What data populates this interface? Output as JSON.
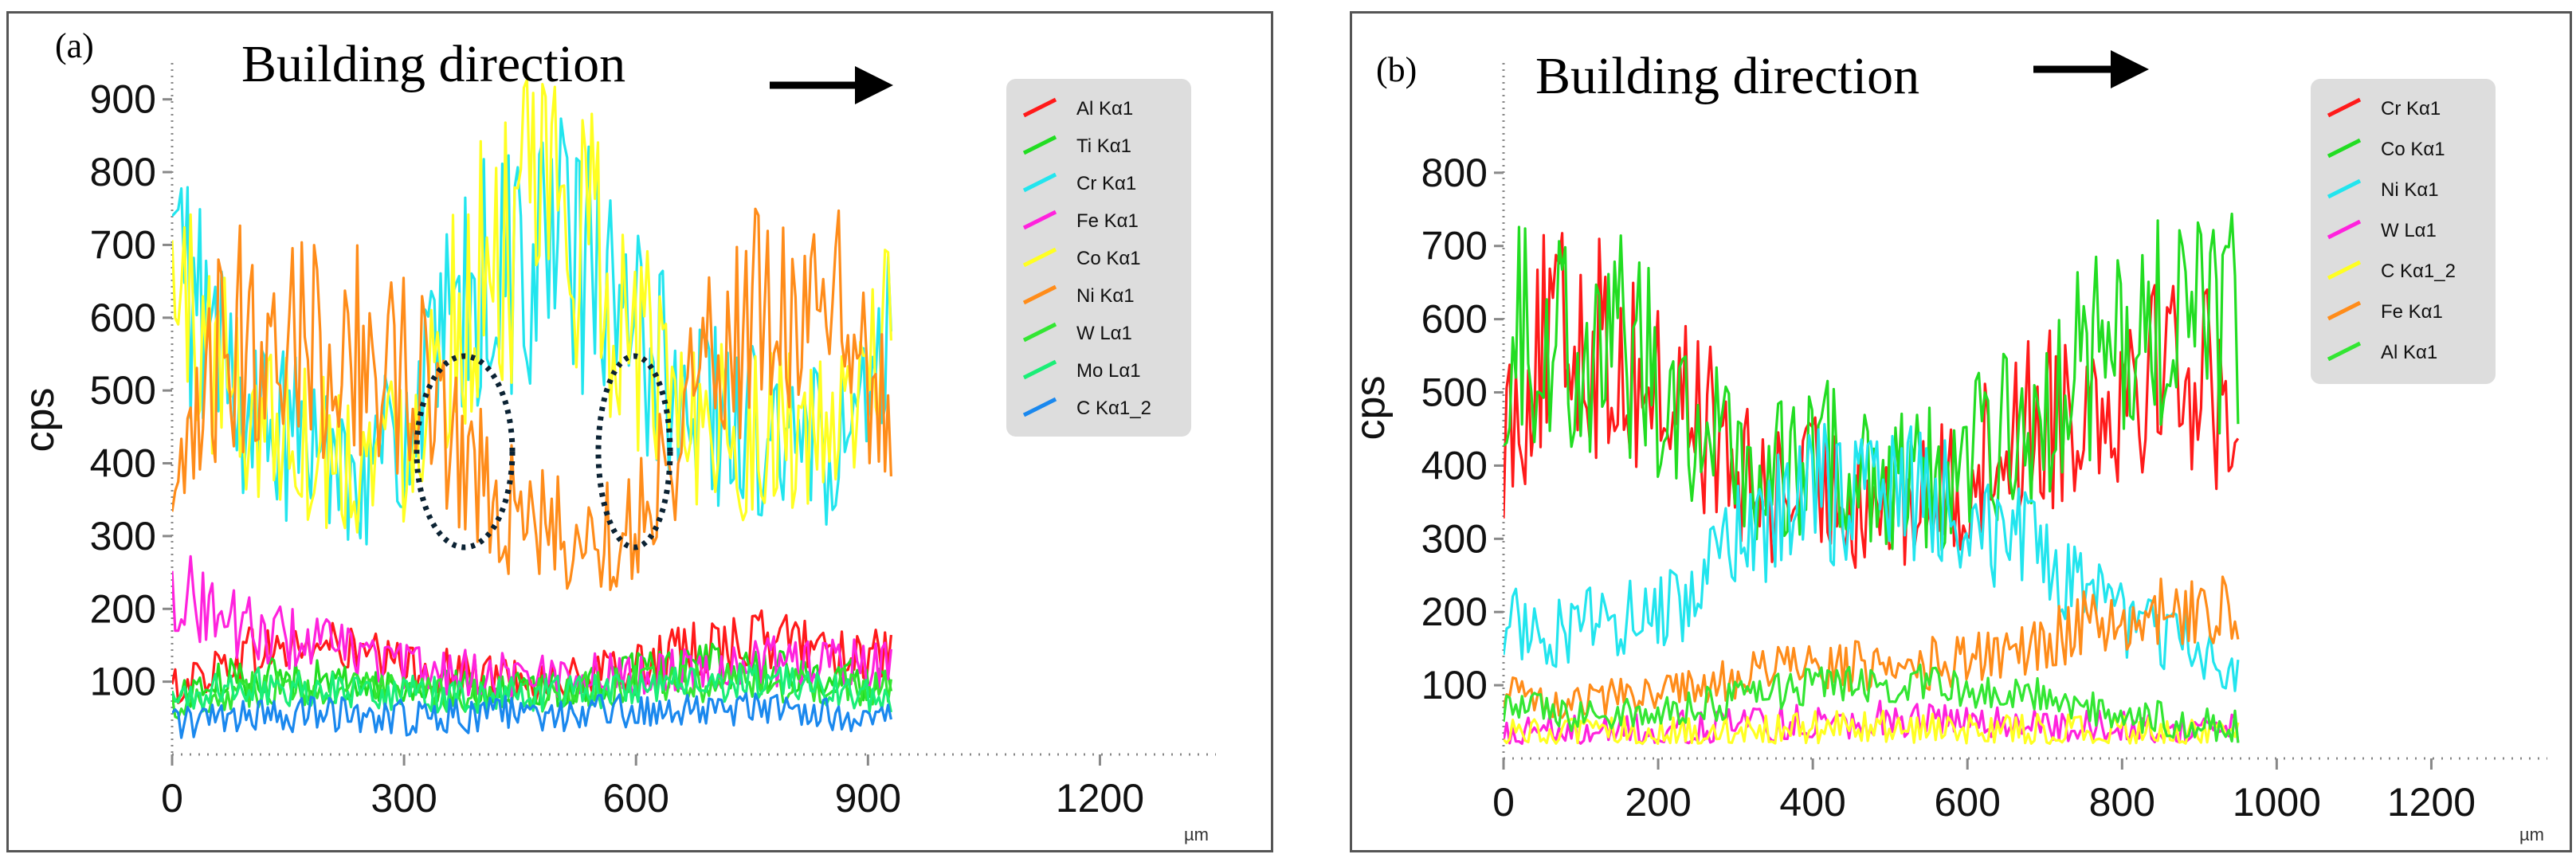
{
  "chart_data": [
    {
      "type": "line",
      "panel_label": "(a)",
      "annotation": "Building direction",
      "ylabel": "cps",
      "xunit": "µm",
      "xlim": [
        0,
        1350
      ],
      "ylim": [
        0,
        950
      ],
      "xticks": [
        0,
        300,
        600,
        900,
        1200
      ],
      "yticks": [
        100,
        200,
        300,
        400,
        500,
        600,
        700,
        800,
        900
      ],
      "legend_position": "top-right",
      "grid": false,
      "series": [
        {
          "name": "Al Kα1",
          "color": "#ff1a1a",
          "x": [
            0,
            100,
            200,
            300,
            400,
            500,
            600,
            700,
            800,
            930
          ],
          "y": [
            90,
            140,
            150,
            120,
            110,
            100,
            120,
            150,
            160,
            130
          ]
        },
        {
          "name": "Ti Kα1",
          "color": "#22dd22",
          "x": [
            0,
            100,
            200,
            300,
            400,
            500,
            600,
            700,
            800,
            930
          ],
          "y": [
            80,
            110,
            100,
            90,
            90,
            90,
            110,
            120,
            110,
            100
          ]
        },
        {
          "name": "Cr Kα1",
          "color": "#22e5ee",
          "x": [
            0,
            50,
            100,
            150,
            200,
            250,
            300,
            350,
            400,
            450,
            500,
            550,
            600,
            650,
            700,
            750,
            800,
            850,
            900,
            930
          ],
          "y": [
            680,
            580,
            460,
            430,
            420,
            400,
            430,
            550,
            640,
            680,
            700,
            650,
            560,
            520,
            470,
            440,
            420,
            420,
            450,
            560
          ]
        },
        {
          "name": "Fe Kα1",
          "color": "#ff22dd",
          "x": [
            0,
            100,
            200,
            300,
            400,
            500,
            600,
            700,
            800,
            930
          ],
          "y": [
            230,
            170,
            150,
            120,
            110,
            110,
            110,
            120,
            130,
            120
          ]
        },
        {
          "name": "Co Kα1",
          "color": "#ffff22",
          "x": [
            0,
            50,
            100,
            150,
            200,
            250,
            300,
            350,
            400,
            450,
            500,
            550,
            600,
            650,
            700,
            750,
            800,
            850,
            900,
            930
          ],
          "y": [
            640,
            560,
            470,
            450,
            420,
            410,
            440,
            570,
            660,
            720,
            750,
            680,
            560,
            500,
            460,
            440,
            440,
            430,
            470,
            700
          ]
        },
        {
          "name": "Ni Kα1",
          "color": "#ff8c1a",
          "x": [
            0,
            30,
            60,
            100,
            150,
            200,
            250,
            300,
            350,
            400,
            450,
            500,
            550,
            600,
            650,
            700,
            750,
            800,
            850,
            900,
            930
          ],
          "y": [
            300,
            420,
            540,
            580,
            600,
            560,
            550,
            520,
            470,
            380,
            320,
            300,
            290,
            320,
            440,
            570,
            600,
            610,
            600,
            550,
            390
          ]
        },
        {
          "name": "W Lα1",
          "color": "#33e633",
          "x": [
            0,
            100,
            200,
            300,
            400,
            500,
            600,
            700,
            800,
            930
          ],
          "y": [
            70,
            90,
            90,
            85,
            80,
            85,
            95,
            100,
            95,
            90
          ]
        },
        {
          "name": "Mo Lα1",
          "color": "#1aee77",
          "x": [
            0,
            100,
            200,
            300,
            400,
            500,
            600,
            700,
            800,
            930
          ],
          "y": [
            75,
            95,
            90,
            85,
            80,
            85,
            90,
            100,
            95,
            80
          ]
        },
        {
          "name": "C Kα1_2",
          "color": "#1a88ee",
          "x": [
            0,
            100,
            200,
            300,
            400,
            500,
            600,
            700,
            800,
            930
          ],
          "y": [
            45,
            50,
            55,
            50,
            55,
            55,
            60,
            60,
            60,
            55
          ]
        }
      ]
    },
    {
      "type": "line",
      "panel_label": "(b)",
      "annotation": "Building direction",
      "ylabel": "cps",
      "xunit": "µm",
      "xlim": [
        0,
        1350
      ],
      "ylim": [
        0,
        950
      ],
      "xticks": [
        0,
        200,
        400,
        600,
        800,
        1000,
        1200
      ],
      "yticks": [
        100,
        200,
        300,
        400,
        500,
        600,
        700,
        800
      ],
      "legend_position": "top-right",
      "grid": false,
      "series": [
        {
          "name": "Cr Kα1",
          "color": "#ff1a1a",
          "x": [
            0,
            50,
            100,
            150,
            200,
            250,
            300,
            350,
            400,
            450,
            500,
            550,
            600,
            650,
            700,
            750,
            800,
            850,
            900,
            950
          ],
          "y": [
            450,
            560,
            580,
            540,
            500,
            480,
            380,
            360,
            370,
            360,
            350,
            350,
            380,
            440,
            470,
            490,
            520,
            560,
            520,
            480
          ]
        },
        {
          "name": "Co Kα1",
          "color": "#22dd22",
          "x": [
            0,
            50,
            100,
            150,
            200,
            250,
            300,
            350,
            400,
            450,
            500,
            550,
            600,
            650,
            700,
            750,
            800,
            850,
            900,
            950
          ],
          "y": [
            580,
            590,
            570,
            560,
            530,
            460,
            400,
            390,
            400,
            410,
            390,
            380,
            400,
            450,
            480,
            530,
            560,
            590,
            600,
            580
          ]
        },
        {
          "name": "Ni Kα1",
          "color": "#22e5ee",
          "x": [
            0,
            50,
            100,
            150,
            200,
            250,
            300,
            350,
            400,
            450,
            500,
            550,
            600,
            650,
            700,
            750,
            800,
            850,
            900,
            950
          ],
          "y": [
            190,
            170,
            180,
            190,
            200,
            230,
            290,
            330,
            360,
            370,
            370,
            360,
            340,
            310,
            270,
            220,
            190,
            170,
            150,
            110
          ]
        },
        {
          "name": "W Lα1",
          "color": "#ff22dd",
          "x": [
            0,
            100,
            200,
            300,
            400,
            500,
            600,
            700,
            800,
            900,
            950
          ],
          "y": [
            35,
            35,
            40,
            45,
            50,
            55,
            50,
            45,
            40,
            35,
            35
          ]
        },
        {
          "name": "C Kα1_2",
          "color": "#ffff22",
          "x": [
            0,
            100,
            200,
            300,
            400,
            500,
            600,
            700,
            800,
            900,
            950
          ],
          "y": [
            30,
            30,
            35,
            35,
            40,
            40,
            40,
            35,
            35,
            30,
            30
          ]
        },
        {
          "name": "Fe Kα1",
          "color": "#ff8c1a",
          "x": [
            0,
            50,
            100,
            150,
            200,
            250,
            300,
            350,
            400,
            450,
            500,
            550,
            600,
            650,
            700,
            750,
            800,
            850,
            900,
            950
          ],
          "y": [
            90,
            80,
            80,
            85,
            90,
            95,
            110,
            120,
            125,
            125,
            130,
            130,
            140,
            150,
            160,
            180,
            190,
            195,
            200,
            190
          ]
        },
        {
          "name": "Al Kα1",
          "color": "#33e633",
          "x": [
            0,
            50,
            100,
            150,
            200,
            250,
            300,
            350,
            400,
            450,
            500,
            550,
            600,
            650,
            700,
            750,
            800,
            850,
            900,
            950
          ],
          "y": [
            70,
            65,
            60,
            60,
            65,
            70,
            80,
            90,
            100,
            100,
            100,
            100,
            95,
            90,
            85,
            70,
            60,
            55,
            50,
            45
          ]
        }
      ]
    }
  ]
}
